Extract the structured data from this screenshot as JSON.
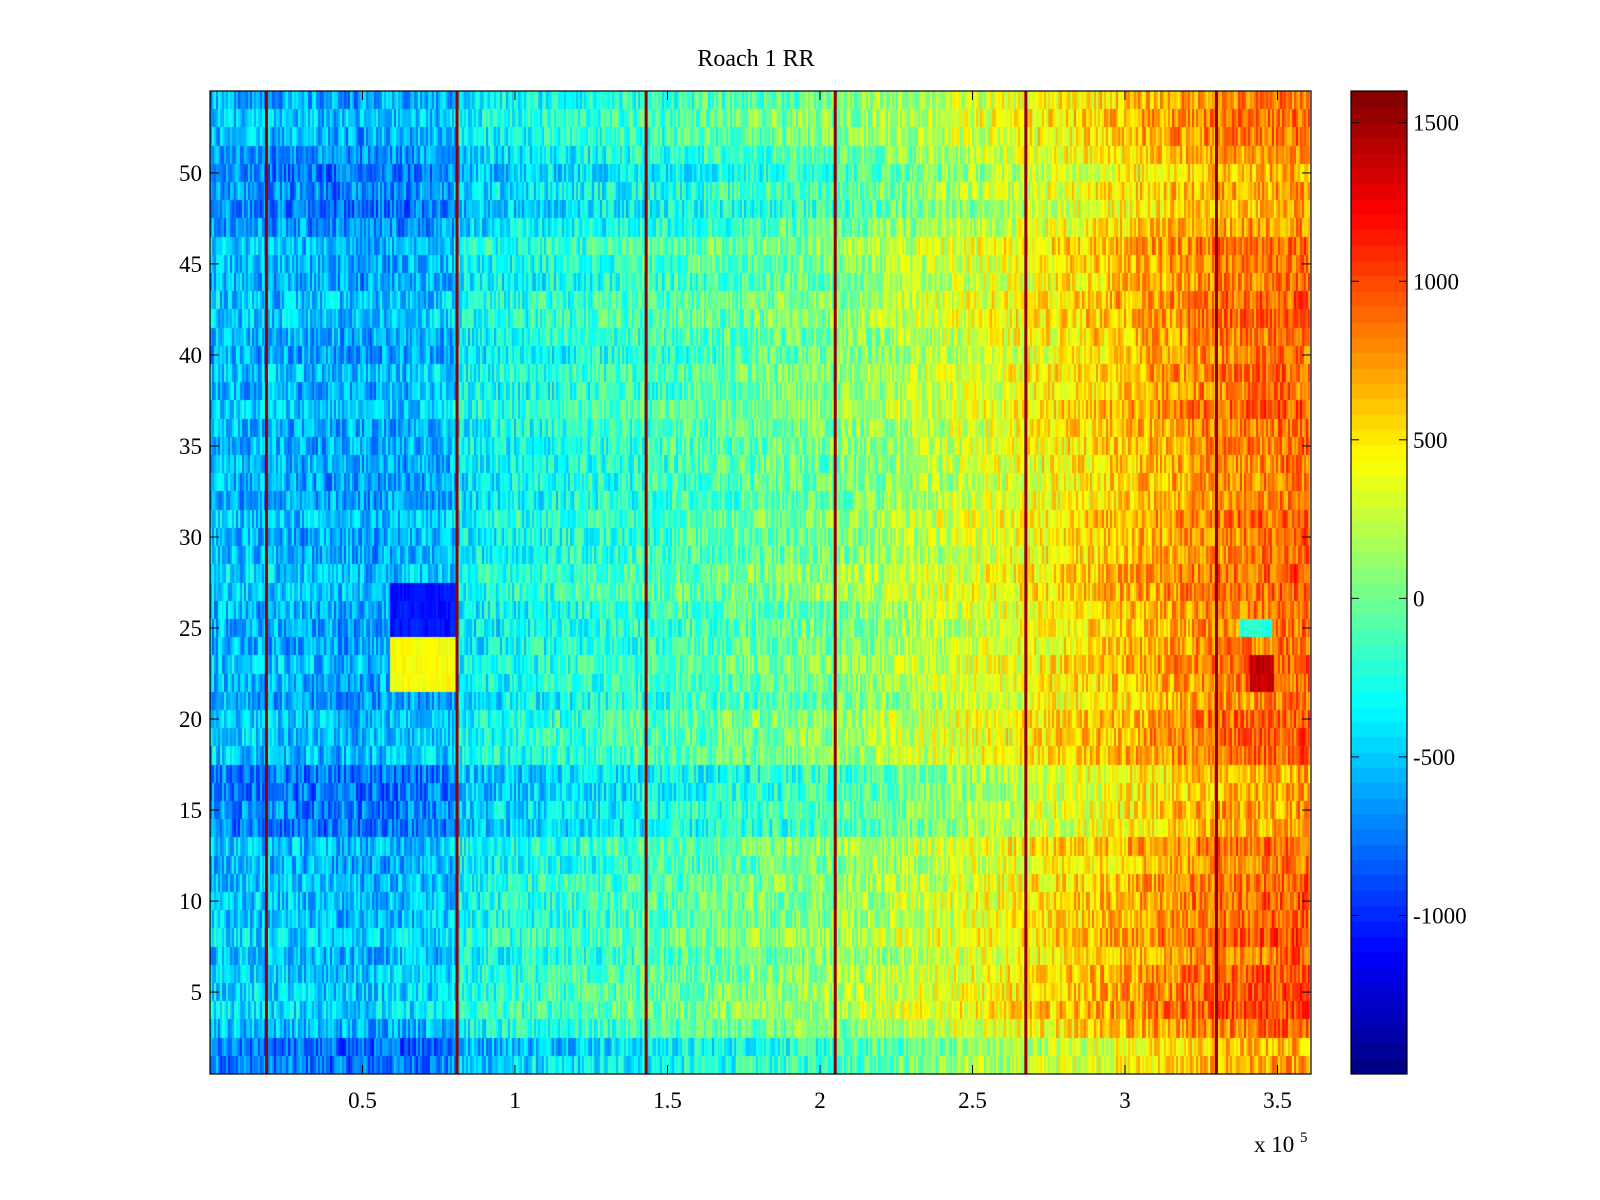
{
  "chart_data": {
    "type": "heatmap",
    "title": "Roach 1 RR",
    "xlabel": "",
    "ylabel": "",
    "colormap": "jet",
    "xlim": [
      0,
      361000
    ],
    "ylim": [
      0.5,
      54.5
    ],
    "x_exponent_label": "x 10",
    "x_exponent_sup": "5",
    "x_ticks": [
      {
        "value": 50000,
        "label": "0.5"
      },
      {
        "value": 100000,
        "label": "1"
      },
      {
        "value": 150000,
        "label": "1.5"
      },
      {
        "value": 200000,
        "label": "2"
      },
      {
        "value": 250000,
        "label": "2.5"
      },
      {
        "value": 300000,
        "label": "3"
      },
      {
        "value": 350000,
        "label": "3.5"
      }
    ],
    "y_ticks": [
      {
        "value": 5,
        "label": "5"
      },
      {
        "value": 10,
        "label": "10"
      },
      {
        "value": 15,
        "label": "15"
      },
      {
        "value": 20,
        "label": "20"
      },
      {
        "value": 25,
        "label": "25"
      },
      {
        "value": 30,
        "label": "30"
      },
      {
        "value": 35,
        "label": "35"
      },
      {
        "value": 40,
        "label": "40"
      },
      {
        "value": 45,
        "label": "45"
      },
      {
        "value": 50,
        "label": "50"
      }
    ],
    "rows": 54,
    "trend": [
      {
        "x": 0,
        "value": -520
      },
      {
        "x": 50000,
        "value": -600
      },
      {
        "x": 80000,
        "value": -520
      },
      {
        "x": 81000,
        "value": -360
      },
      {
        "x": 140000,
        "value": -160
      },
      {
        "x": 205000,
        "value": 50
      },
      {
        "x": 270000,
        "value": 430
      },
      {
        "x": 330000,
        "value": 820
      },
      {
        "x": 361000,
        "value": 900
      }
    ],
    "noise_amplitude": 280,
    "stripe_lines": [
      {
        "x": 18500,
        "value": 1550
      },
      {
        "x": 81000,
        "value": 1550
      },
      {
        "x": 143000,
        "value": 1550
      },
      {
        "x": 205000,
        "value": 1550
      },
      {
        "x": 267500,
        "value": 1550
      },
      {
        "x": 330000,
        "value": 1550
      }
    ],
    "row_offsets": [
      {
        "row_from": 1,
        "row_to": 2,
        "offset": -200
      },
      {
        "row_from": 14,
        "row_to": 17,
        "offset": -150
      },
      {
        "row_from": 47,
        "row_to": 51,
        "offset": -130
      },
      {
        "row_from": 4,
        "row_to": 8,
        "offset": 60
      }
    ],
    "anomalies": [
      {
        "x_from": 59000,
        "x_to": 81000,
        "row_from": 25,
        "row_to": 27,
        "value": -1050
      },
      {
        "x_from": 59000,
        "x_to": 81000,
        "row_from": 22,
        "row_to": 24,
        "value": 420
      },
      {
        "x_from": 341000,
        "x_to": 349000,
        "row_from": 22,
        "row_to": 23,
        "value": 1400
      },
      {
        "x_from": 338000,
        "x_to": 348000,
        "row_from": 25,
        "row_to": 25,
        "value": -250
      }
    ],
    "colorbar": {
      "min": -1500,
      "max": 1600,
      "ticks": [
        {
          "value": -1000,
          "label": "-1000"
        },
        {
          "value": -500,
          "label": "-500"
        },
        {
          "value": 0,
          "label": "0"
        },
        {
          "value": 500,
          "label": "500"
        },
        {
          "value": 1000,
          "label": "1000"
        },
        {
          "value": 1500,
          "label": "1500"
        }
      ]
    }
  }
}
